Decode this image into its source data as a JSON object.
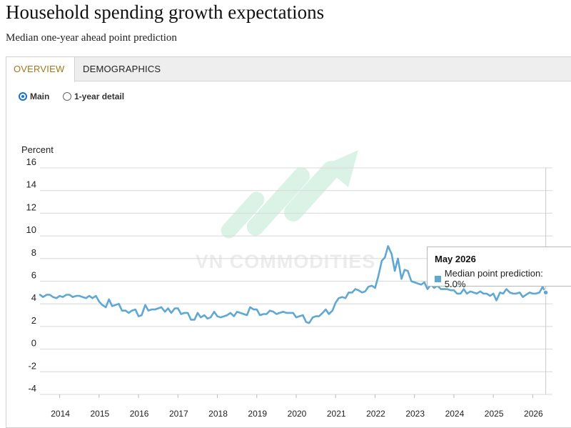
{
  "header": {
    "title": "Household spending growth expectations",
    "subtitle": "Median one-year ahead point prediction"
  },
  "tabs": [
    {
      "label": "OVERVIEW",
      "active": true
    },
    {
      "label": "DEMOGRAPHICS",
      "active": false
    }
  ],
  "view_options": [
    {
      "label": "Main",
      "checked": true
    },
    {
      "label": "1-year detail",
      "checked": false
    }
  ],
  "watermark": "VN COMMODITIES",
  "tooltip": {
    "title": "May 2026",
    "series_label": "Median point prediction: 5.0%"
  },
  "colors": {
    "line": "#5fa8d3",
    "accent": "#1a73c9",
    "tab_active": "#9c7a1c"
  },
  "chart_data": {
    "type": "line",
    "ylabel": "Percent",
    "ylim": [
      -4,
      16
    ],
    "yticks": [
      16,
      14,
      12,
      10,
      8,
      6,
      4,
      2,
      0,
      -2,
      -4
    ],
    "xlim": [
      2013.5,
      2026.5
    ],
    "xticks": [
      "2014",
      "2015",
      "2016",
      "2017",
      "2018",
      "2019",
      "2020",
      "2021",
      "2022",
      "2023",
      "2024",
      "2025",
      "2026"
    ],
    "grid": true,
    "series": [
      {
        "name": "Median point prediction",
        "x": [
          2013.5,
          2013.58,
          2013.67,
          2013.75,
          2013.83,
          2013.92,
          2014.0,
          2014.08,
          2014.17,
          2014.25,
          2014.33,
          2014.42,
          2014.5,
          2014.58,
          2014.67,
          2014.75,
          2014.83,
          2014.92,
          2015.0,
          2015.08,
          2015.17,
          2015.25,
          2015.33,
          2015.42,
          2015.5,
          2015.58,
          2015.67,
          2015.75,
          2015.83,
          2015.92,
          2016.0,
          2016.08,
          2016.17,
          2016.25,
          2016.33,
          2016.42,
          2016.5,
          2016.58,
          2016.67,
          2016.75,
          2016.83,
          2016.92,
          2017.0,
          2017.08,
          2017.17,
          2017.25,
          2017.33,
          2017.42,
          2017.5,
          2017.58,
          2017.67,
          2017.75,
          2017.83,
          2017.92,
          2018.0,
          2018.08,
          2018.17,
          2018.25,
          2018.33,
          2018.42,
          2018.5,
          2018.58,
          2018.67,
          2018.75,
          2018.83,
          2018.92,
          2019.0,
          2019.08,
          2019.17,
          2019.25,
          2019.33,
          2019.42,
          2019.5,
          2019.58,
          2019.67,
          2019.75,
          2019.83,
          2019.92,
          2020.0,
          2020.08,
          2020.17,
          2020.25,
          2020.33,
          2020.42,
          2020.5,
          2020.58,
          2020.67,
          2020.75,
          2020.83,
          2020.92,
          2021.0,
          2021.08,
          2021.17,
          2021.25,
          2021.33,
          2021.42,
          2021.5,
          2021.58,
          2021.67,
          2021.75,
          2021.83,
          2021.92,
          2022.0,
          2022.08,
          2022.17,
          2022.25,
          2022.33,
          2022.42,
          2022.5,
          2022.58,
          2022.67,
          2022.75,
          2022.83,
          2022.92,
          2023.0,
          2023.08,
          2023.17,
          2023.25,
          2023.33,
          2023.42,
          2023.5,
          2023.58,
          2023.67,
          2023.75,
          2023.83,
          2023.92,
          2024.0,
          2024.08,
          2024.17,
          2024.25,
          2024.33,
          2024.42,
          2024.5,
          2024.58,
          2024.67,
          2024.75,
          2024.83,
          2024.92,
          2025.0,
          2025.08,
          2025.17,
          2025.25,
          2025.33,
          2025.42,
          2025.5,
          2025.58,
          2025.67,
          2025.75,
          2025.83,
          2025.92,
          2026.0,
          2026.08,
          2026.17,
          2026.25,
          2026.33
        ],
        "values": [
          4.8,
          4.6,
          4.8,
          4.8,
          4.6,
          4.5,
          4.7,
          4.6,
          4.8,
          4.8,
          4.6,
          4.7,
          4.7,
          4.6,
          4.5,
          4.7,
          4.5,
          4.7,
          4.2,
          3.9,
          3.7,
          4.4,
          3.8,
          3.9,
          4.0,
          3.4,
          3.4,
          3.2,
          3.4,
          3.5,
          2.9,
          3.0,
          3.9,
          3.4,
          3.5,
          3.5,
          3.6,
          3.7,
          3.3,
          3.6,
          3.2,
          3.6,
          3.6,
          3.1,
          3.2,
          3.2,
          2.6,
          2.6,
          3.2,
          2.8,
          3.0,
          2.7,
          2.8,
          3.3,
          2.9,
          2.8,
          2.9,
          3.0,
          3.2,
          2.9,
          3.3,
          3.2,
          3.1,
          3.0,
          3.7,
          3.5,
          3.5,
          3.0,
          3.1,
          3.1,
          3.4,
          3.3,
          3.1,
          3.2,
          3.3,
          3.2,
          3.2,
          3.2,
          2.8,
          2.9,
          3.0,
          2.4,
          2.3,
          2.8,
          2.9,
          2.9,
          3.2,
          3.5,
          3.1,
          3.4,
          4.1,
          4.5,
          4.6,
          4.5,
          5.0,
          5.0,
          5.3,
          5.2,
          5.0,
          5.1,
          5.5,
          5.6,
          5.4,
          6.4,
          7.8,
          8.1,
          9.1,
          8.4,
          6.9,
          8.0,
          6.2,
          7.0,
          6.9,
          6.0,
          5.9,
          5.8,
          5.7,
          5.9,
          5.3,
          5.7,
          5.4,
          5.6,
          5.3,
          5.3,
          5.3,
          5.2,
          5.2,
          4.9,
          4.9,
          5.3,
          4.9,
          5.1,
          5.0,
          4.9,
          5.1,
          4.9,
          4.9,
          4.7,
          4.9,
          4.3,
          5.0,
          4.9,
          5.3,
          5.0,
          4.9,
          4.9,
          5.0,
          4.6,
          4.8,
          5.0,
          4.9,
          4.9,
          5.0,
          5.5,
          5.0
        ]
      }
    ]
  }
}
